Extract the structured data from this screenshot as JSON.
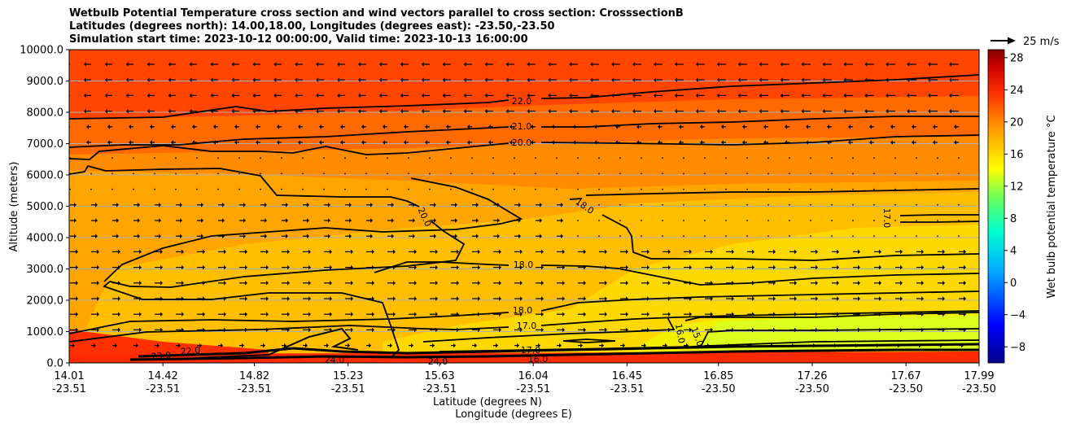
{
  "chart_data": {
    "type": "heatmap",
    "title": [
      "Wetbulb Potential Temperature cross section and wind vectors parallel to cross section: CrosssectionB",
      "Latitudes (degrees north): 14.00,18.00, Longitudes (degrees east): -23.50,-23.50",
      "Simulation start time: 2023-10-12 00:00:00, Valid time: 2023-10-13 16:00:00"
    ],
    "xlabel": "Latitude (degrees N)",
    "xlabel2": "Longitude (degrees E)",
    "ylabel": "Altitude (meters)",
    "ylim": [
      0,
      10000
    ],
    "y_ticks": [
      "0.0",
      "1000.0",
      "2000.0",
      "3000.0",
      "4000.0",
      "5000.0",
      "6000.0",
      "7000.0",
      "8000.0",
      "9000.0",
      "10000.0"
    ],
    "x_ticks_lat": [
      "14.01",
      "14.42",
      "14.82",
      "15.23",
      "15.63",
      "16.04",
      "16.45",
      "16.85",
      "17.26",
      "17.67",
      "17.99"
    ],
    "x_ticks_lon": [
      "-23.51",
      "-23.51",
      "-23.51",
      "-23.51",
      "-23.51",
      "-23.51",
      "-23.51",
      "-23.50",
      "-23.50",
      "-23.50",
      "-23.50"
    ],
    "colorbar": {
      "label": "Wet bulb potential temperature $^\\circ$C",
      "ticks": [
        "28",
        "24",
        "20",
        "16",
        "12",
        "8",
        "4",
        "0",
        "−4",
        "−8"
      ],
      "range": [
        -10,
        29
      ]
    },
    "quiver_key": "25 m/s",
    "contour_labels": [
      "22.0",
      "21.0",
      "20.0",
      "20.0",
      "18.0",
      "18.0",
      "18.0",
      "17.0",
      "17.0",
      "16.0",
      "15.0",
      "23.0",
      "22.0",
      "24.0",
      "24.0",
      "17.0",
      "16.0"
    ],
    "grid": true,
    "colors": {
      "hot": "#ff4000",
      "warm": "#ffa000",
      "mild": "#ffd200",
      "cool": "#dcff20"
    }
  }
}
